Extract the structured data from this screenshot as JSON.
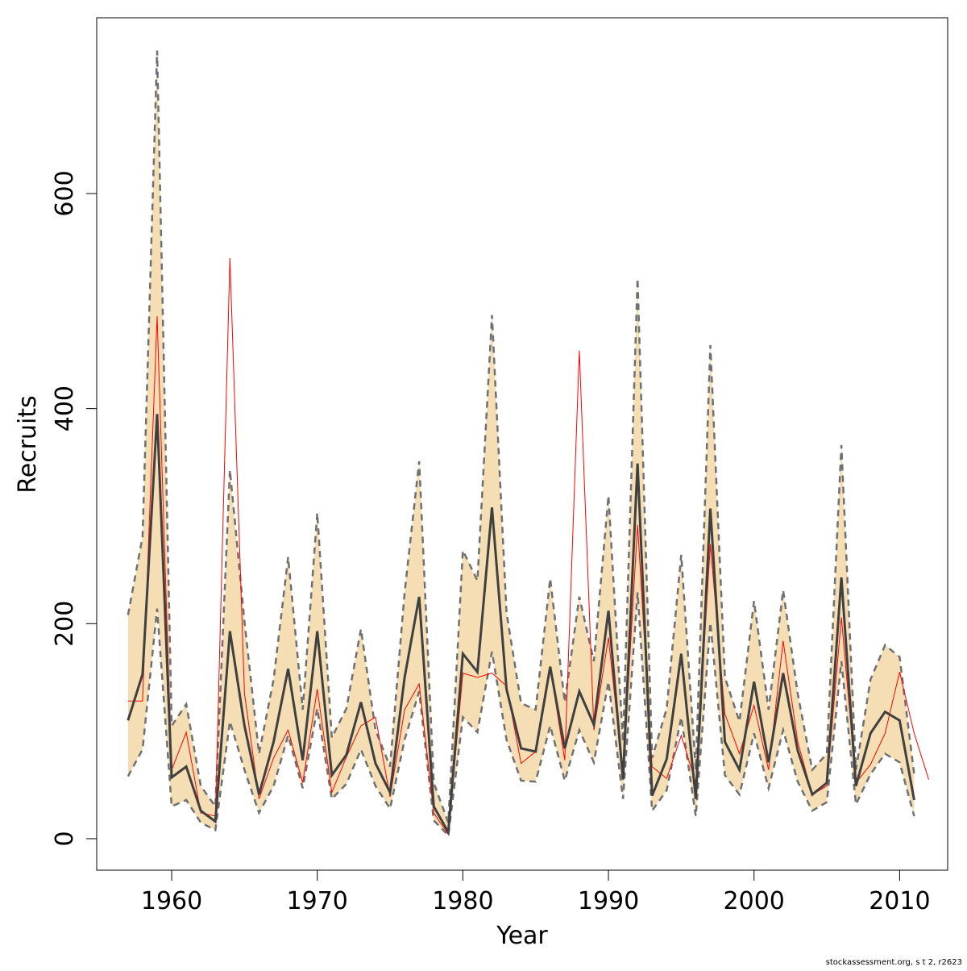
{
  "chart_data": {
    "type": "line",
    "xlabel": "Year",
    "ylabel": "Recruits",
    "footnote": "stockassessment.org, s t 2, r2623",
    "x": [
      1957,
      1958,
      1959,
      1960,
      1961,
      1962,
      1963,
      1964,
      1965,
      1966,
      1967,
      1968,
      1969,
      1970,
      1971,
      1972,
      1973,
      1974,
      1975,
      1976,
      1977,
      1978,
      1979,
      1980,
      1981,
      1982,
      1983,
      1984,
      1985,
      1986,
      1987,
      1988,
      1989,
      1990,
      1991,
      1992,
      1993,
      1994,
      1995,
      1996,
      1997,
      1998,
      1999,
      2000,
      2001,
      2002,
      2003,
      2004,
      2005,
      2006,
      2007,
      2008,
      2009,
      2010,
      2011,
      2012
    ],
    "band": {
      "color": "#f5deb3",
      "line_color": "#707070",
      "upper": [
        208,
        281,
        733,
        105,
        125,
        49,
        30,
        343,
        202,
        79,
        148,
        262,
        120,
        303,
        94,
        121,
        195,
        101,
        67,
        229,
        351,
        52,
        15,
        268,
        240,
        487,
        210,
        126,
        120,
        242,
        127,
        225,
        165,
        319,
        90,
        521,
        75,
        121,
        264,
        64,
        459,
        150,
        109,
        221,
        120,
        231,
        135,
        64,
        79,
        366,
        64,
        148,
        180,
        169,
        60,
        null
      ],
      "lower": [
        58,
        83,
        214,
        30,
        36,
        15,
        8,
        109,
        64,
        24,
        49,
        96,
        47,
        121,
        37,
        51,
        83,
        49,
        28,
        92,
        137,
        17,
        3,
        113,
        99,
        174,
        92,
        54,
        53,
        105,
        54,
        101,
        71,
        146,
        37,
        229,
        26,
        45,
        113,
        21,
        201,
        59,
        41,
        98,
        47,
        101,
        53,
        26,
        34,
        165,
        32,
        60,
        79,
        71,
        21,
        null
      ]
    },
    "series": [
      {
        "color": "#404040",
        "values": [
          110,
          153,
          395,
          57,
          67,
          26,
          16,
          193,
          105,
          41,
          90,
          158,
          73,
          193,
          59,
          78,
          127,
          70,
          43,
          150,
          225,
          30,
          6,
          172,
          155,
          308,
          139,
          84,
          81,
          160,
          84,
          137,
          106,
          212,
          55,
          349,
          40,
          74,
          172,
          37,
          307,
          90,
          64,
          146,
          71,
          154,
          82,
          41,
          52,
          243,
          49,
          98,
          118,
          110,
          36,
          null
        ]
      },
      {
        "color": "#ff0000",
        "values": [
          128,
          128,
          486,
          64,
          99,
          24,
          21,
          540,
          135,
          37,
          75,
          101,
          52,
          139,
          43,
          76,
          105,
          113,
          39,
          120,
          144,
          24,
          4,
          154,
          150,
          154,
          142,
          70,
          81,
          159,
          73,
          454,
          101,
          187,
          60,
          292,
          67,
          56,
          96,
          52,
          274,
          116,
          79,
          124,
          64,
          184,
          90,
          41,
          49,
          206,
          52,
          69,
          98,
          155,
          98,
          55
        ]
      }
    ],
    "xlim": [
      1954.85,
      2013.3
    ],
    "ylim": [
      -29.3,
      763.5
    ],
    "xticks": [
      1960,
      1970,
      1980,
      1990,
      2000,
      2010
    ],
    "yticks": [
      0,
      200,
      400,
      600
    ]
  }
}
